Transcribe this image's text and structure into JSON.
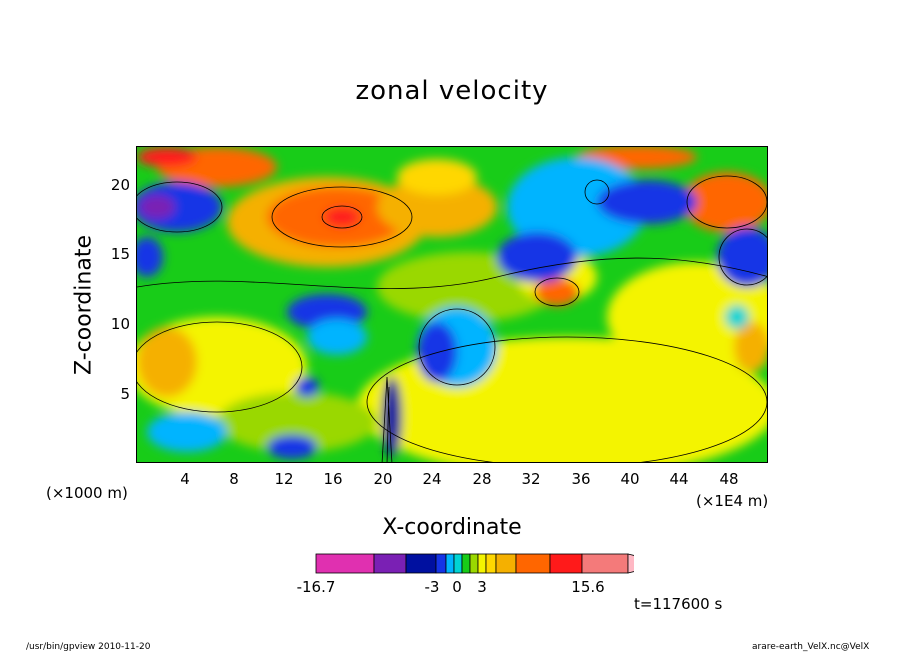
{
  "chart_data": {
    "type": "heatmap",
    "title": "zonal velocity",
    "xlabel": "X-coordinate",
    "ylabel": "Z-coordinate",
    "x_unit_left": "(×1000 m)",
    "x_unit_right": "(×1E4 m)",
    "xlim": [
      0,
      51
    ],
    "ylim": [
      0,
      22.7
    ],
    "x_ticks": [
      "4",
      "8",
      "12",
      "16",
      "20",
      "24",
      "28",
      "32",
      "36",
      "40",
      "44",
      "48"
    ],
    "y_ticks": [
      "5",
      "10",
      "15",
      "20"
    ],
    "colorbar": {
      "colors": [
        "#e030b0",
        "#7a20b4",
        "#0010a0",
        "#1434e6",
        "#00b4ff",
        "#00d4d4",
        "#18cc18",
        "#9ad800",
        "#f4f400",
        "#ffd700",
        "#f5b000",
        "#ff6600",
        "#ff1a1a",
        "#f47a7a",
        "#ffb8c4"
      ],
      "labels": [
        "-16.7",
        "-3",
        "0",
        "3",
        "15.6"
      ]
    },
    "time_label": "t=117600 s"
  },
  "footer": {
    "left": "/usr/bin/gpview  2010-11-20",
    "right": "arare-earth_VelX.nc@VelX"
  }
}
